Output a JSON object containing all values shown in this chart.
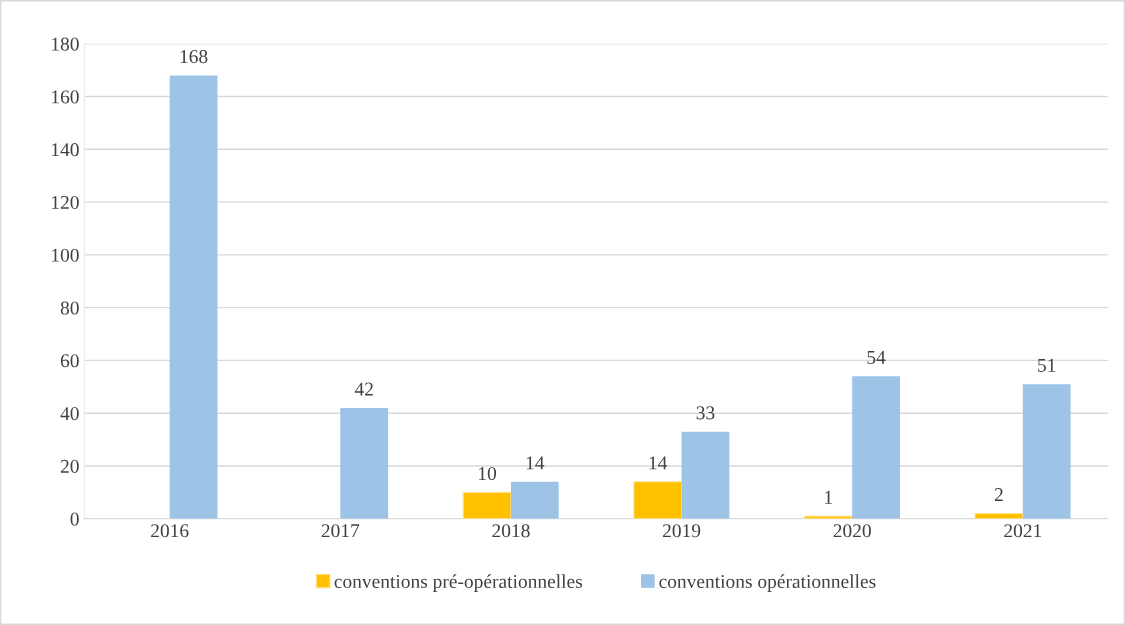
{
  "chart_data": {
    "type": "bar",
    "categories": [
      "2016",
      "2017",
      "2018",
      "2019",
      "2020",
      "2021"
    ],
    "series": [
      {
        "name": "conventions pré-opérationnelles",
        "color": "#ffc000",
        "values": [
          null,
          null,
          10,
          14,
          1,
          2
        ]
      },
      {
        "name": "conventions opérationnelles",
        "color": "#9dc3e6",
        "values": [
          168,
          42,
          14,
          33,
          54,
          51
        ]
      }
    ],
    "ylim": [
      0,
      180
    ],
    "yticks": [
      0,
      20,
      40,
      60,
      80,
      100,
      120,
      140,
      160,
      180
    ],
    "grid": "y",
    "legend": "bottom",
    "data_labels": true
  }
}
